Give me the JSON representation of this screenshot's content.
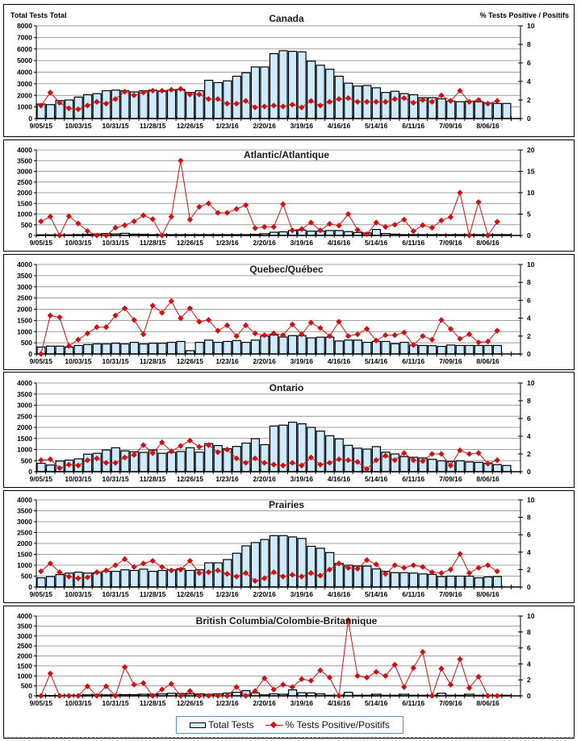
{
  "legend": {
    "bars_label": "Total Tests",
    "line_label": "% Tests Positive/Positifs"
  },
  "colors": {
    "bar_fill": "#cfeafc",
    "bar_stroke": "#000000",
    "line": "#d01010",
    "grid": "#808080"
  },
  "chart_data": [
    {
      "type": "bar+line",
      "title": "Canada",
      "ylabel": "Total Tests Total",
      "y2label": "% Tests Positive / Positifs",
      "ylim": [
        0,
        8000
      ],
      "yticks": [
        0,
        1000,
        2000,
        3000,
        4000,
        5000,
        6000,
        7000,
        8000
      ],
      "y2lim": [
        0,
        10
      ],
      "y2ticks": [
        0,
        2,
        4,
        6,
        8,
        10
      ],
      "x_tick_labels": [
        "9/05/15",
        "10/03/15",
        "10/31/15",
        "11/28/15",
        "12/26/15",
        "1/23/16",
        "2/20/16",
        "3/19/16",
        "4/16/16",
        "5/14/16",
        "6/11/16",
        "7/09/16",
        "8/06/16"
      ],
      "grid": true,
      "series": [
        {
          "name": "Total Tests",
          "kind": "bar",
          "axis": "left",
          "values": [
            1250,
            1200,
            1550,
            1600,
            1850,
            2050,
            2150,
            2400,
            2450,
            2400,
            2300,
            2400,
            2450,
            2350,
            2450,
            2500,
            2250,
            2400,
            3300,
            3100,
            3250,
            3650,
            3950,
            4450,
            4450,
            5600,
            5850,
            5800,
            5750,
            4950,
            4600,
            4250,
            3650,
            3050,
            2800,
            2850,
            2650,
            2250,
            2350,
            2150,
            2050,
            1800,
            1800,
            1700,
            1500,
            1450,
            1500,
            1450,
            1350,
            1300,
            1300
          ]
        },
        {
          "name": "% Tests Positive/Positifs",
          "kind": "line",
          "axis": "right",
          "values": [
            1.4,
            2.8,
            1.7,
            1.1,
            1.0,
            1.4,
            1.8,
            1.6,
            2.1,
            2.9,
            2.5,
            2.8,
            3.0,
            3.0,
            3.1,
            3.2,
            2.6,
            2.6,
            2.1,
            2.1,
            1.6,
            1.6,
            1.9,
            1.2,
            1.3,
            1.4,
            1.3,
            1.5,
            1.2,
            1.9,
            1.4,
            1.8,
            2.1,
            2.2,
            1.8,
            1.8,
            1.8,
            1.8,
            2.1,
            2.2,
            1.7,
            2.0,
            1.8,
            2.5,
            1.9,
            3.0,
            1.8,
            2.0,
            1.6,
            1.9
          ]
        }
      ]
    },
    {
      "type": "bar+line",
      "title": "Atlantic/Atlantique",
      "ylim": [
        0,
        4000
      ],
      "yticks": [
        0,
        500,
        1000,
        1500,
        2000,
        2500,
        3000,
        3500,
        4000
      ],
      "y2lim": [
        0,
        20
      ],
      "y2ticks": [
        0,
        5,
        10,
        15,
        20
      ],
      "x_tick_labels": [
        "9/05/15",
        "10/03/15",
        "10/31/15",
        "11/28/15",
        "12/26/15",
        "1/23/16",
        "2/20/16",
        "3/19/16",
        "4/16/16",
        "5/14/16",
        "6/11/16",
        "7/09/16",
        "8/06/16"
      ],
      "grid": true,
      "series": [
        {
          "name": "Total Tests",
          "kind": "bar",
          "axis": "left",
          "values": [
            30,
            30,
            30,
            30,
            40,
            50,
            70,
            90,
            70,
            100,
            60,
            50,
            40,
            40,
            40,
            40,
            40,
            40,
            40,
            40,
            40,
            40,
            40,
            50,
            80,
            150,
            170,
            230,
            250,
            200,
            200,
            230,
            230,
            180,
            140,
            120,
            280,
            90,
            60,
            40,
            40,
            40,
            40,
            40,
            40,
            40,
            40,
            40,
            40,
            40,
            40
          ]
        },
        {
          "name": "% Tests Positive/Positifs",
          "kind": "line",
          "axis": "right",
          "values": [
            3.3,
            4.4,
            0,
            4.5,
            2.8,
            1.0,
            0,
            0,
            1.8,
            2.4,
            3.3,
            4.7,
            3.8,
            0,
            4.4,
            17.5,
            3.7,
            6.7,
            7.5,
            5.3,
            5.3,
            6.2,
            7.1,
            1.7,
            2.0,
            2.0,
            7.3,
            1.2,
            1.5,
            3.0,
            1.2,
            2.7,
            2.3,
            5.0,
            1.3,
            0.3,
            3.0,
            2.0,
            2.5,
            3.7,
            1.0,
            2.4,
            1.8,
            3.5,
            4.3,
            10.0,
            0,
            7.8,
            0,
            3.2
          ]
        }
      ]
    },
    {
      "type": "bar+line",
      "title": "Quebec/Québec",
      "ylim": [
        0,
        4000
      ],
      "yticks": [
        0,
        500,
        1000,
        1500,
        2000,
        2500,
        3000,
        3500,
        4000
      ],
      "y2lim": [
        0,
        10
      ],
      "y2ticks": [
        0,
        2,
        4,
        6,
        8,
        10
      ],
      "x_tick_labels": [
        "9/05/15",
        "10/03/15",
        "10/31/15",
        "11/28/15",
        "12/26/15",
        "1/23/16",
        "2/20/16",
        "3/19/16",
        "4/16/16",
        "5/14/16",
        "6/11/16",
        "7/09/16",
        "8/06/16"
      ],
      "grid": true,
      "series": [
        {
          "name": "Total Tests",
          "kind": "bar",
          "axis": "left",
          "values": [
            310,
            350,
            350,
            310,
            380,
            420,
            450,
            450,
            480,
            450,
            520,
            450,
            480,
            480,
            520,
            560,
            150,
            520,
            620,
            520,
            560,
            600,
            520,
            620,
            800,
            850,
            760,
            820,
            820,
            720,
            750,
            750,
            580,
            620,
            620,
            520,
            560,
            560,
            460,
            520,
            400,
            380,
            370,
            340,
            400,
            380,
            380,
            380,
            380,
            380
          ]
        },
        {
          "name": "% Tests Positive/Positifs",
          "kind": "line",
          "axis": "right",
          "values": [
            0,
            4.3,
            4.1,
            0.9,
            1.6,
            2.3,
            3.0,
            3.0,
            4.3,
            5.1,
            3.8,
            2.2,
            5.4,
            4.6,
            5.9,
            4.0,
            5.1,
            3.6,
            3.8,
            2.6,
            3.2,
            2.0,
            3.2,
            2.3,
            2.1,
            2.3,
            2.1,
            3.3,
            2.2,
            3.5,
            2.9,
            2.0,
            3.6,
            2.0,
            2.2,
            2.8,
            1.5,
            2.1,
            2.1,
            2.4,
            1.0,
            2.0,
            1.6,
            3.8,
            2.8,
            1.7,
            2.2,
            1.3,
            1.4,
            2.6
          ]
        }
      ]
    },
    {
      "type": "bar+line",
      "title": "Ontario",
      "ylim": [
        0,
        4000
      ],
      "yticks": [
        0,
        500,
        1000,
        1500,
        2000,
        2500,
        3000,
        3500,
        4000
      ],
      "y2lim": [
        0,
        10
      ],
      "y2ticks": [
        0,
        2,
        4,
        6,
        8,
        10
      ],
      "x_tick_labels": [
        "9/05/15",
        "10/03/15",
        "10/31/15",
        "11/28/15",
        "12/26/15",
        "1/23/16",
        "2/20/16",
        "3/19/16",
        "4/16/16",
        "5/14/16",
        "6/11/16",
        "7/09/16",
        "8/06/16"
      ],
      "grid": true,
      "series": [
        {
          "name": "Total Tests",
          "kind": "bar",
          "axis": "left",
          "values": [
            380,
            300,
            480,
            520,
            580,
            790,
            830,
            980,
            1080,
            940,
            900,
            870,
            980,
            830,
            870,
            910,
            1080,
            880,
            1270,
            1180,
            1040,
            1140,
            1290,
            1490,
            1220,
            2060,
            2100,
            2230,
            2160,
            2000,
            1830,
            1620,
            1480,
            1190,
            1060,
            1020,
            1130,
            880,
            800,
            680,
            650,
            620,
            560,
            490,
            460,
            490,
            440,
            420,
            380,
            320,
            280
          ]
        },
        {
          "name": "% Tests Positive/Positifs",
          "kind": "line",
          "axis": "right",
          "values": [
            1.3,
            1.4,
            0.4,
            0.8,
            0.7,
            1.3,
            1.5,
            1.0,
            1.0,
            1.6,
            1.9,
            3.0,
            2.1,
            3.3,
            2.3,
            2.9,
            3.5,
            2.8,
            3.0,
            2.2,
            2.5,
            1.5,
            1.0,
            1.5,
            1.0,
            0.8,
            0.7,
            1.0,
            0.7,
            1.6,
            0.8,
            1.0,
            1.4,
            1.3,
            1.1,
            0.3,
            1.3,
            1.8,
            1.3,
            2.1,
            1.3,
            1.2,
            2.0,
            2.0,
            0.7,
            2.4,
            2.0,
            2.1,
            0.9,
            1.3
          ]
        }
      ]
    },
    {
      "type": "bar+line",
      "title": "Prairies",
      "ylim": [
        0,
        4000
      ],
      "yticks": [
        0,
        500,
        1000,
        1500,
        2000,
        2500,
        3000,
        3500,
        4000
      ],
      "y2lim": [
        0,
        10
      ],
      "y2ticks": [
        0,
        2,
        4,
        6,
        8,
        10
      ],
      "x_tick_labels": [
        "9/05/15",
        "10/03/15",
        "10/31/15",
        "11/28/15",
        "12/26/15",
        "1/23/16",
        "2/20/16",
        "3/19/16",
        "4/16/16",
        "5/14/16",
        "6/11/16",
        "7/09/16",
        "8/06/16"
      ],
      "grid": true,
      "series": [
        {
          "name": "Total Tests",
          "kind": "bar",
          "axis": "left",
          "values": [
            420,
            480,
            570,
            640,
            680,
            640,
            650,
            720,
            720,
            790,
            760,
            820,
            720,
            760,
            790,
            840,
            760,
            790,
            1110,
            1110,
            1260,
            1550,
            1890,
            2040,
            2180,
            2360,
            2360,
            2300,
            2230,
            1870,
            1780,
            1580,
            1080,
            1000,
            960,
            960,
            830,
            720,
            660,
            660,
            640,
            600,
            580,
            480,
            500,
            500,
            500,
            420,
            460,
            480
          ]
        },
        {
          "name": "% Tests Positive/Positifs",
          "kind": "line",
          "axis": "right",
          "values": [
            1.8,
            2.7,
            1.7,
            1.2,
            1.0,
            1.1,
            1.7,
            1.9,
            2.5,
            3.2,
            2.3,
            2.7,
            3.0,
            2.3,
            1.9,
            2.0,
            3.0,
            1.6,
            1.7,
            1.9,
            1.5,
            1.2,
            1.6,
            0.7,
            1.0,
            1.7,
            1.2,
            1.4,
            1.2,
            1.6,
            1.3,
            2.0,
            2.7,
            2.2,
            2.1,
            3.1,
            2.6,
            1.5,
            2.5,
            2.2,
            2.5,
            2.3,
            1.7,
            1.6,
            2.0,
            3.8,
            1.6,
            2.2,
            2.5,
            1.8
          ]
        }
      ]
    },
    {
      "type": "bar+line",
      "title": "British Columbia/Colombie-Britannique",
      "ylim": [
        0,
        4000
      ],
      "yticks": [
        0,
        500,
        1000,
        1500,
        2000,
        2500,
        3000,
        3500,
        4000
      ],
      "y2lim": [
        0,
        10
      ],
      "y2ticks": [
        0,
        2,
        4,
        6,
        8,
        10
      ],
      "x_tick_labels": [
        "9/05/15",
        "10/03/15",
        "10/31/15",
        "11/28/15",
        "12/26/15",
        "1/23/16",
        "2/20/16",
        "3/19/16",
        "4/16/16",
        "5/14/16",
        "6/11/16",
        "7/09/16",
        "8/06/16"
      ],
      "grid": true,
      "series": [
        {
          "name": "Total Tests",
          "kind": "bar",
          "axis": "left",
          "values": [
            20,
            20,
            20,
            30,
            30,
            50,
            50,
            50,
            50,
            60,
            60,
            80,
            80,
            100,
            130,
            120,
            100,
            100,
            80,
            100,
            140,
            180,
            260,
            150,
            50,
            100,
            80,
            300,
            160,
            150,
            100,
            30,
            30,
            180,
            30,
            30,
            80,
            30,
            30,
            80,
            30,
            30,
            30,
            130,
            30,
            30,
            80,
            30,
            30,
            30,
            30
          ]
        },
        {
          "name": "% Tests Positive/Positifs",
          "kind": "line",
          "axis": "right",
          "values": [
            0,
            2.8,
            0,
            0,
            0,
            1.2,
            0,
            1.2,
            0,
            3.6,
            1.4,
            1.6,
            0,
            0.8,
            1.5,
            0,
            0.6,
            0,
            0,
            0,
            0,
            1.1,
            0,
            0.6,
            2.2,
            0.8,
            1.4,
            1.1,
            2.1,
            1.9,
            3.2,
            2.3,
            0,
            9.5,
            2.5,
            2.3,
            3.0,
            2.5,
            3.9,
            1.1,
            3.5,
            5.5,
            0,
            3.4,
            1.4,
            4.6,
            1.0,
            2.4,
            0,
            0
          ]
        }
      ]
    }
  ]
}
